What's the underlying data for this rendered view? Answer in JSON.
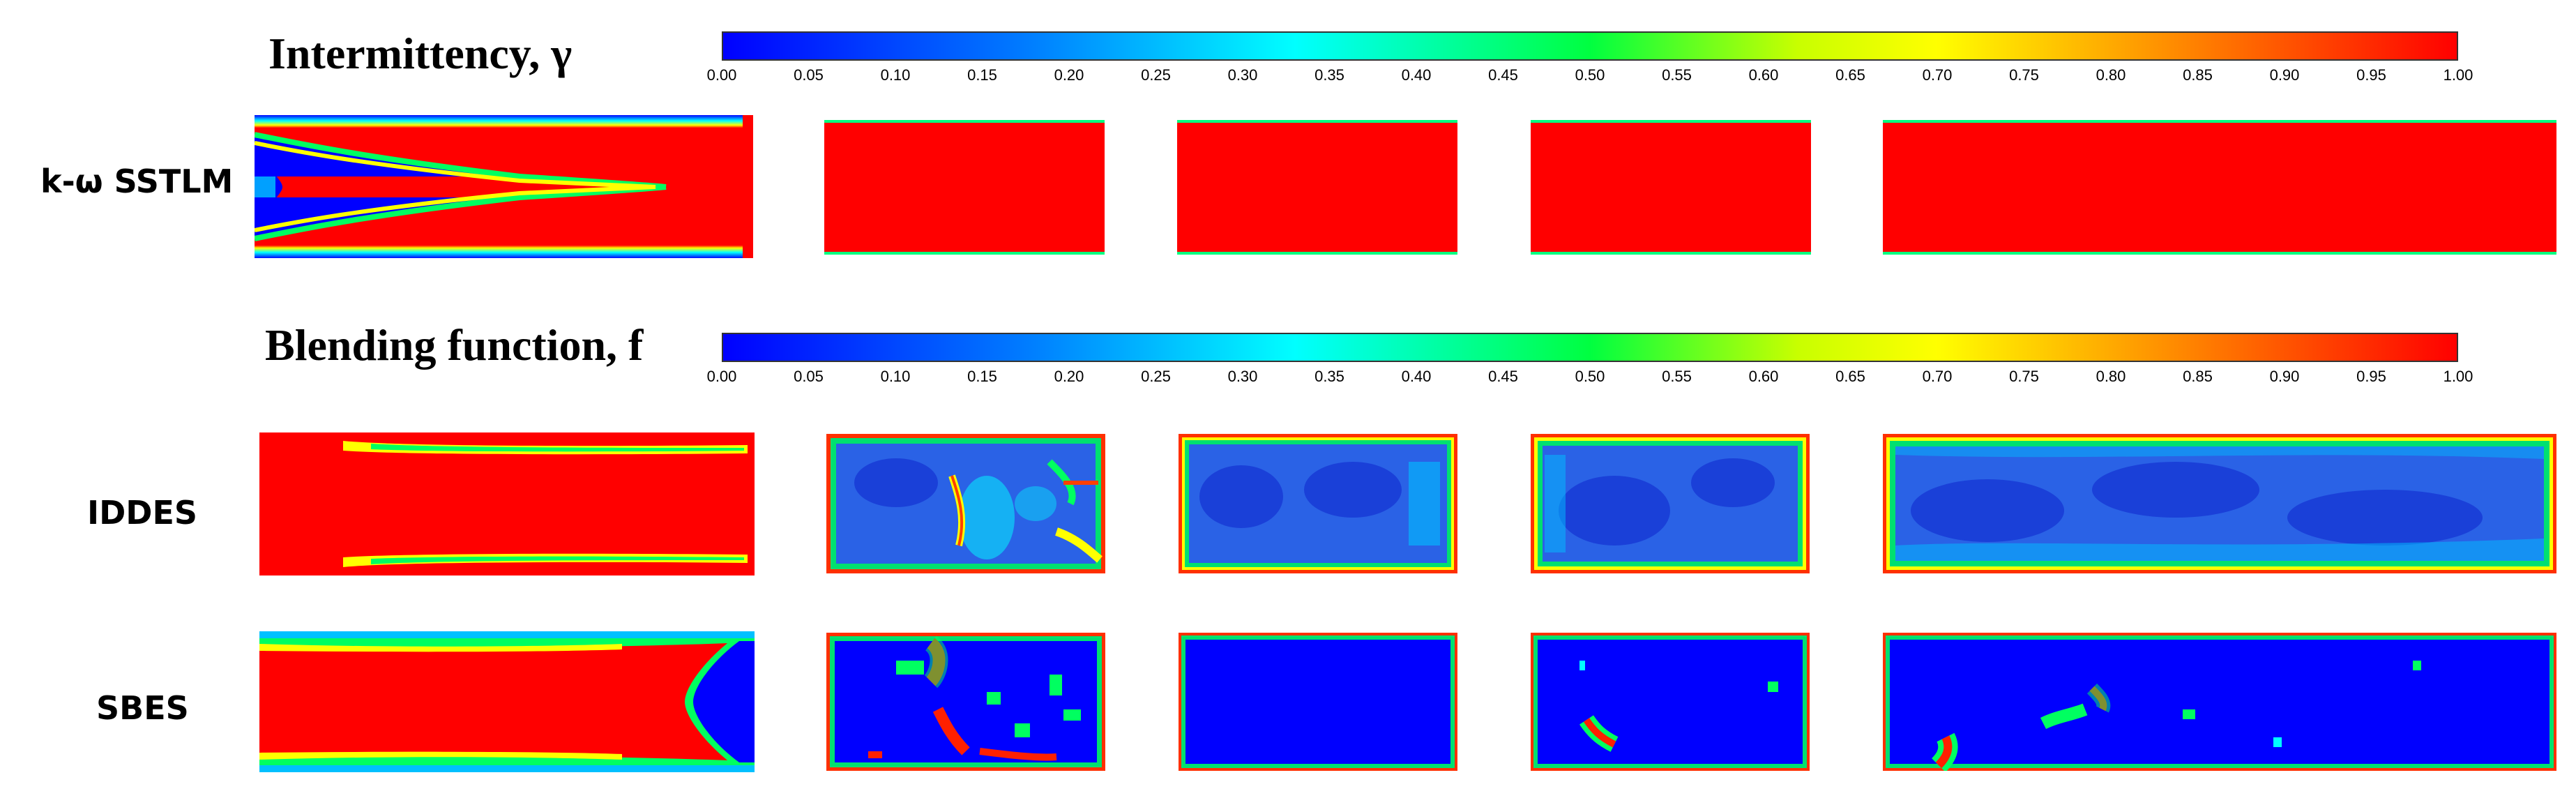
{
  "sections": {
    "intermittency": {
      "title": "Intermittency, γ"
    },
    "blending": {
      "title": "Blending function, f"
    }
  },
  "colorbar": {
    "ticks": [
      "0.00",
      "0.05",
      "0.10",
      "0.15",
      "0.20",
      "0.25",
      "0.30",
      "0.35",
      "0.40",
      "0.45",
      "0.50",
      "0.55",
      "0.60",
      "0.65",
      "0.70",
      "0.75",
      "0.80",
      "0.85",
      "0.90",
      "0.95",
      "1.00"
    ],
    "colormap": [
      "#0000ff",
      "#0080ff",
      "#00ffff",
      "#00ff40",
      "#c8ff00",
      "#ffff00",
      "#ff8000",
      "#ff0000"
    ]
  },
  "rows": [
    {
      "label": "k-ω SSTLM"
    },
    {
      "label": "IDDES"
    },
    {
      "label": "SBES"
    }
  ],
  "colors": {
    "red": "#ff0000",
    "blue": "#0000ff",
    "idd_blue": "#2a62e6"
  }
}
